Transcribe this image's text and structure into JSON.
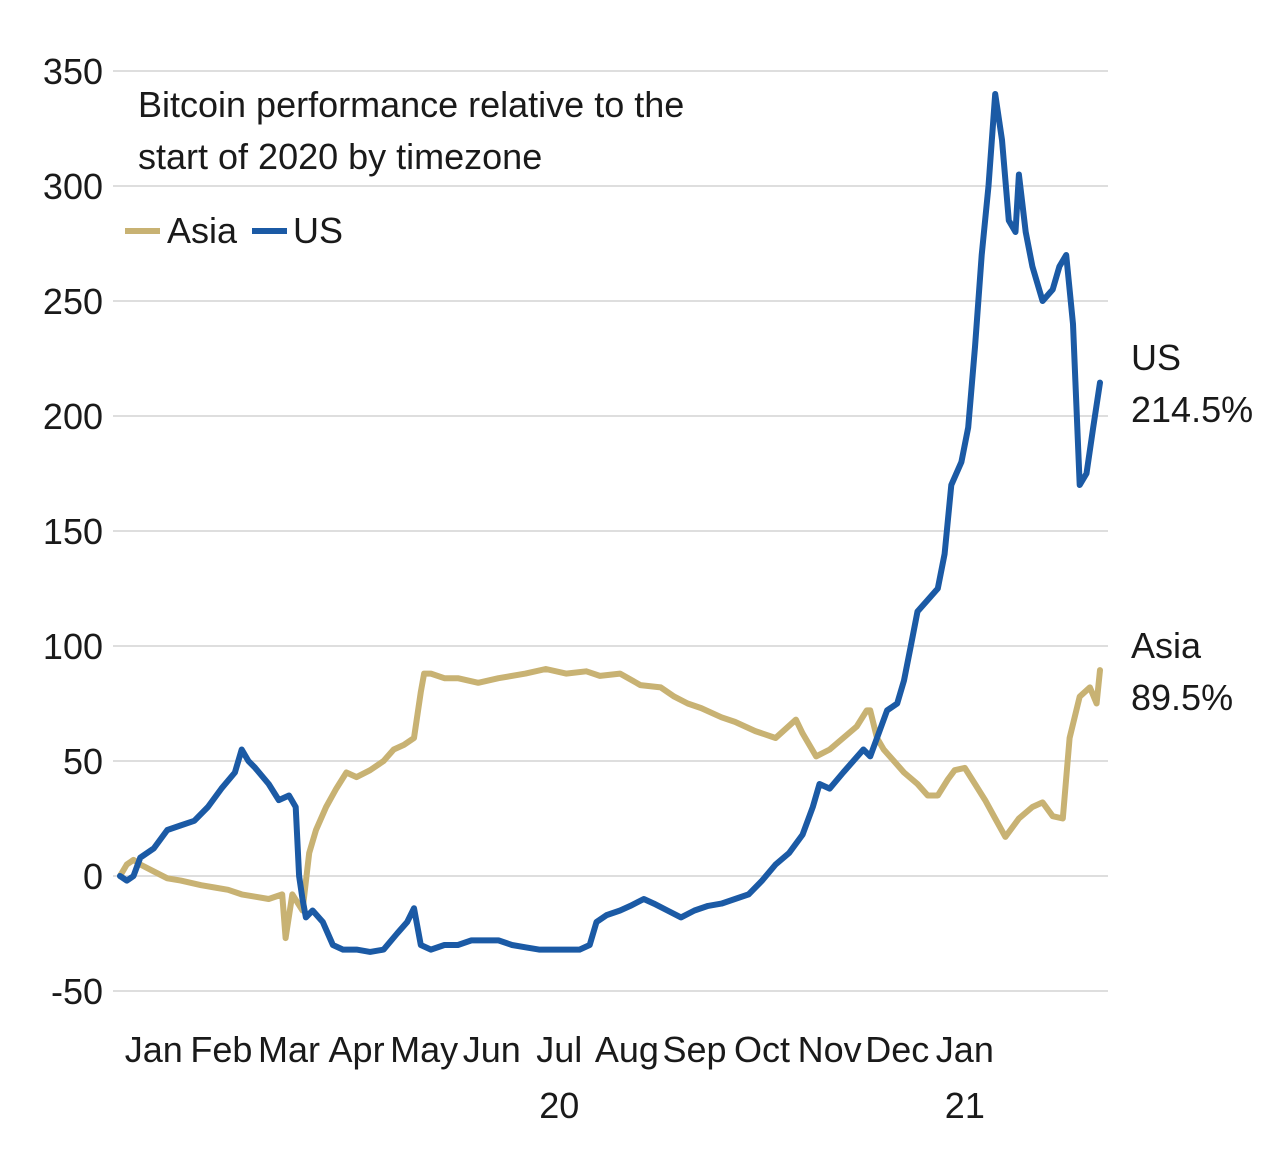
{
  "chart_data": {
    "type": "line",
    "title": "Bitcoin performance relative to the start of 2020 by timezone",
    "title_lines": [
      "Bitcoin performance relative to the",
      "start of 2020 by timezone"
    ],
    "xlabel": "",
    "ylabel": "",
    "ylim": [
      -50,
      350
    ],
    "y_ticks": [
      350,
      300,
      250,
      200,
      150,
      100,
      50,
      0,
      -50
    ],
    "y_tick_labels": [
      "350",
      "300",
      "250",
      "200",
      "150",
      "100",
      "50",
      "0",
      "-50"
    ],
    "grid": true,
    "legend": {
      "placement": "top-left",
      "entries": [
        "Asia",
        "US"
      ]
    },
    "x_ticks": [
      {
        "label": "Jan",
        "month": 0.5
      },
      {
        "label": "Feb",
        "month": 1.5
      },
      {
        "label": "Mar",
        "month": 2.5
      },
      {
        "label": "Apr",
        "month": 3.5
      },
      {
        "label": "May",
        "month": 4.5
      },
      {
        "label": "Jun",
        "month": 5.5
      },
      {
        "label": "Jul",
        "month": 6.5
      },
      {
        "label": "Aug",
        "month": 7.5
      },
      {
        "label": "Sep",
        "month": 8.5
      },
      {
        "label": "Oct",
        "month": 9.5
      },
      {
        "label": "Nov",
        "month": 10.5
      },
      {
        "label": "Dec",
        "month": 11.5
      },
      {
        "label": "Jan",
        "month": 12.5
      }
    ],
    "year_labels": [
      {
        "label": "20",
        "month": 6.5
      },
      {
        "label": "21",
        "month": 12.5
      }
    ],
    "x_unit": "months since start of 2020",
    "series": [
      {
        "name": "Asia",
        "color": "#c8b273",
        "end_label": [
          "Asia",
          "89.5%"
        ],
        "points": [
          [
            0.0,
            0
          ],
          [
            0.1,
            5
          ],
          [
            0.2,
            7
          ],
          [
            0.3,
            5
          ],
          [
            0.5,
            2
          ],
          [
            0.7,
            -1
          ],
          [
            0.9,
            -2
          ],
          [
            1.2,
            -4
          ],
          [
            1.4,
            -5
          ],
          [
            1.6,
            -6
          ],
          [
            1.8,
            -8
          ],
          [
            2.0,
            -9
          ],
          [
            2.2,
            -10
          ],
          [
            2.4,
            -8
          ],
          [
            2.45,
            -27
          ],
          [
            2.55,
            -8
          ],
          [
            2.7,
            -15
          ],
          [
            2.8,
            10
          ],
          [
            2.9,
            20
          ],
          [
            3.05,
            30
          ],
          [
            3.2,
            38
          ],
          [
            3.35,
            45
          ],
          [
            3.5,
            43
          ],
          [
            3.7,
            46
          ],
          [
            3.9,
            50
          ],
          [
            4.05,
            55
          ],
          [
            4.2,
            57
          ],
          [
            4.35,
            60
          ],
          [
            4.45,
            80
          ],
          [
            4.5,
            88
          ],
          [
            4.6,
            88
          ],
          [
            4.8,
            86
          ],
          [
            5.0,
            86
          ],
          [
            5.3,
            84
          ],
          [
            5.6,
            86
          ],
          [
            6.0,
            88
          ],
          [
            6.3,
            90
          ],
          [
            6.6,
            88
          ],
          [
            6.9,
            89
          ],
          [
            7.1,
            87
          ],
          [
            7.4,
            88
          ],
          [
            7.7,
            83
          ],
          [
            8.0,
            82
          ],
          [
            8.2,
            78
          ],
          [
            8.4,
            75
          ],
          [
            8.6,
            73
          ],
          [
            8.9,
            69
          ],
          [
            9.1,
            67
          ],
          [
            9.4,
            63
          ],
          [
            9.7,
            60
          ],
          [
            10.0,
            68
          ],
          [
            10.1,
            62
          ],
          [
            10.3,
            52
          ],
          [
            10.5,
            55
          ],
          [
            10.7,
            60
          ],
          [
            10.9,
            65
          ],
          [
            11.05,
            72
          ],
          [
            11.1,
            72
          ],
          [
            11.2,
            60
          ],
          [
            11.3,
            55
          ],
          [
            11.45,
            50
          ],
          [
            11.6,
            45
          ],
          [
            11.8,
            40
          ],
          [
            11.95,
            35
          ],
          [
            12.1,
            35
          ],
          [
            12.25,
            42
          ],
          [
            12.35,
            46
          ],
          [
            12.5,
            47
          ],
          [
            12.65,
            40
          ],
          [
            12.8,
            33
          ],
          [
            12.95,
            25
          ],
          [
            13.1,
            17
          ],
          [
            13.3,
            25
          ],
          [
            13.5,
            30
          ],
          [
            13.65,
            32
          ],
          [
            13.8,
            26
          ],
          [
            13.95,
            25
          ],
          [
            14.05,
            60
          ],
          [
            14.2,
            78
          ],
          [
            14.35,
            82
          ],
          [
            14.45,
            75
          ],
          [
            14.5,
            89.5
          ]
        ]
      },
      {
        "name": "US",
        "color": "#1b5aa5",
        "end_label": [
          "US",
          "214.5%"
        ],
        "points": [
          [
            0.0,
            0
          ],
          [
            0.1,
            -2
          ],
          [
            0.2,
            0
          ],
          [
            0.3,
            8
          ],
          [
            0.5,
            12
          ],
          [
            0.7,
            20
          ],
          [
            0.9,
            22
          ],
          [
            1.1,
            24
          ],
          [
            1.3,
            30
          ],
          [
            1.5,
            38
          ],
          [
            1.7,
            45
          ],
          [
            1.8,
            55
          ],
          [
            1.9,
            50
          ],
          [
            2.0,
            47
          ],
          [
            2.2,
            40
          ],
          [
            2.35,
            33
          ],
          [
            2.5,
            35
          ],
          [
            2.6,
            30
          ],
          [
            2.65,
            0
          ],
          [
            2.7,
            -10
          ],
          [
            2.75,
            -18
          ],
          [
            2.85,
            -15
          ],
          [
            3.0,
            -20
          ],
          [
            3.15,
            -30
          ],
          [
            3.3,
            -32
          ],
          [
            3.5,
            -32
          ],
          [
            3.7,
            -33
          ],
          [
            3.9,
            -32
          ],
          [
            4.1,
            -25
          ],
          [
            4.25,
            -20
          ],
          [
            4.35,
            -14
          ],
          [
            4.45,
            -30
          ],
          [
            4.6,
            -32
          ],
          [
            4.8,
            -30
          ],
          [
            5.0,
            -30
          ],
          [
            5.2,
            -28
          ],
          [
            5.4,
            -28
          ],
          [
            5.6,
            -28
          ],
          [
            5.8,
            -30
          ],
          [
            6.0,
            -31
          ],
          [
            6.2,
            -32
          ],
          [
            6.4,
            -32
          ],
          [
            6.6,
            -32
          ],
          [
            6.8,
            -32
          ],
          [
            6.95,
            -30
          ],
          [
            7.05,
            -20
          ],
          [
            7.2,
            -17
          ],
          [
            7.4,
            -15
          ],
          [
            7.55,
            -13
          ],
          [
            7.75,
            -10
          ],
          [
            7.9,
            -12
          ],
          [
            8.1,
            -15
          ],
          [
            8.3,
            -18
          ],
          [
            8.5,
            -15
          ],
          [
            8.7,
            -13
          ],
          [
            8.9,
            -12
          ],
          [
            9.1,
            -10
          ],
          [
            9.3,
            -8
          ],
          [
            9.5,
            -2
          ],
          [
            9.7,
            5
          ],
          [
            9.9,
            10
          ],
          [
            10.1,
            18
          ],
          [
            10.25,
            30
          ],
          [
            10.35,
            40
          ],
          [
            10.5,
            38
          ],
          [
            10.7,
            45
          ],
          [
            10.85,
            50
          ],
          [
            11.0,
            55
          ],
          [
            11.1,
            52
          ],
          [
            11.2,
            60
          ],
          [
            11.35,
            72
          ],
          [
            11.5,
            75
          ],
          [
            11.6,
            85
          ],
          [
            11.7,
            100
          ],
          [
            11.8,
            115
          ],
          [
            11.95,
            120
          ],
          [
            12.1,
            125
          ],
          [
            12.2,
            140
          ],
          [
            12.3,
            170
          ],
          [
            12.45,
            180
          ],
          [
            12.55,
            195
          ],
          [
            12.65,
            230
          ],
          [
            12.75,
            270
          ],
          [
            12.85,
            300
          ],
          [
            12.95,
            340
          ],
          [
            13.05,
            320
          ],
          [
            13.15,
            285
          ],
          [
            13.25,
            280
          ],
          [
            13.3,
            305
          ],
          [
            13.4,
            280
          ],
          [
            13.5,
            265
          ],
          [
            13.65,
            250
          ],
          [
            13.8,
            255
          ],
          [
            13.9,
            265
          ],
          [
            14.0,
            270
          ],
          [
            14.1,
            240
          ],
          [
            14.2,
            170
          ],
          [
            14.3,
            175
          ],
          [
            14.4,
            195
          ],
          [
            14.5,
            214.5
          ]
        ]
      }
    ]
  }
}
